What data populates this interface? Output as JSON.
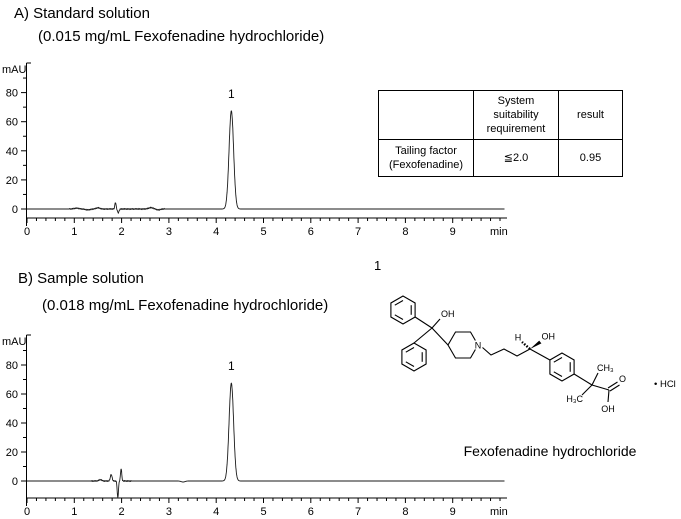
{
  "panel_a": {
    "title": "A) Standard solution",
    "subtitle": "(0.015 mg/mL Fexofenadine hydrochloride)"
  },
  "panel_b": {
    "title": "B) Sample solution",
    "subtitle": "(0.018 mg/mL Fexofenadine hydrochloride)"
  },
  "table": {
    "headers": [
      "",
      "System\nsuitability\nrequirement",
      "result"
    ],
    "rows": [
      [
        "Tailing factor\n(Fexofenadine)",
        "≦2.0",
        "0.95"
      ]
    ]
  },
  "structure": {
    "peak_number": "1",
    "caption": "Fexofenadine hydrochloride",
    "labels": {
      "oh_top": "OH",
      "n": "N",
      "h": "H",
      "oh_mid": "OH",
      "ch3": "CH₃",
      "h3c": "H₃C",
      "o": "O",
      "oh_acid": "OH",
      "salt": "• HCl"
    }
  },
  "chart_data": [
    {
      "type": "line",
      "panel": "A",
      "title": "A) Standard solution (0.015 mg/mL Fexofenadine hydrochloride)",
      "ylabel": "mAU",
      "xlabel": "min",
      "xlim": [
        0,
        10.1
      ],
      "ylim": [
        -10,
        95
      ],
      "xticks": [
        0,
        1,
        2,
        3,
        4,
        5,
        6,
        7,
        8,
        9
      ],
      "yticks": [
        0,
        20,
        40,
        60,
        80
      ],
      "yticks_minor": [
        10,
        30,
        50,
        70,
        90
      ],
      "baseline_mau": 0,
      "peaks": [
        {
          "label": "1",
          "retention_time_min": 4.32,
          "height_mau": 67.5,
          "sigma_min": 0.048
        }
      ],
      "events": [
        {
          "time_min": 1.05,
          "amplitude_mau": 0.6,
          "sigma_min": 0.05
        },
        {
          "time_min": 1.28,
          "amplitude_mau": -0.6,
          "sigma_min": 0.05
        },
        {
          "time_min": 1.5,
          "amplitude_mau": 0.8,
          "sigma_min": 0.04
        },
        {
          "time_min": 1.87,
          "amplitude_mau": 4.5,
          "sigma_min": 0.013
        },
        {
          "time_min": 1.93,
          "amplitude_mau": -2.6,
          "sigma_min": 0.016
        },
        {
          "time_min": 2.62,
          "amplitude_mau": 0.9,
          "sigma_min": 0.05
        },
        {
          "time_min": 2.78,
          "amplitude_mau": -0.6,
          "sigma_min": 0.04
        }
      ],
      "noise_regions": [
        {
          "from": 0.9,
          "to": 2.9,
          "amplitude_mau": 0.4
        }
      ]
    },
    {
      "type": "line",
      "panel": "B",
      "title": "B) Sample solution (0.018 mg/mL Fexofenadine hydrochloride)",
      "ylabel": "mAU",
      "xlabel": "min",
      "xlim": [
        0,
        10.1
      ],
      "ylim": [
        -12,
        95
      ],
      "xticks": [
        0,
        1,
        2,
        3,
        4,
        5,
        6,
        7,
        8,
        9
      ],
      "yticks": [
        0,
        20,
        40,
        60,
        80
      ],
      "yticks_minor": [
        10,
        30,
        50,
        70,
        90
      ],
      "baseline_mau": 0,
      "peaks": [
        {
          "label": "1",
          "retention_time_min": 4.32,
          "height_mau": 67.5,
          "sigma_min": 0.048
        }
      ],
      "events": [
        {
          "time_min": 1.55,
          "amplitude_mau": 0.9,
          "sigma_min": 0.03
        },
        {
          "time_min": 1.78,
          "amplitude_mau": 4.5,
          "sigma_min": 0.018
        },
        {
          "time_min": 1.92,
          "amplitude_mau": -11.5,
          "sigma_min": 0.013
        },
        {
          "time_min": 1.99,
          "amplitude_mau": 8.5,
          "sigma_min": 0.013
        },
        {
          "time_min": 3.3,
          "amplitude_mau": -0.7,
          "sigma_min": 0.04
        }
      ],
      "noise_regions": [
        {
          "from": 1.35,
          "to": 2.2,
          "amplitude_mau": 0.4
        }
      ]
    }
  ]
}
